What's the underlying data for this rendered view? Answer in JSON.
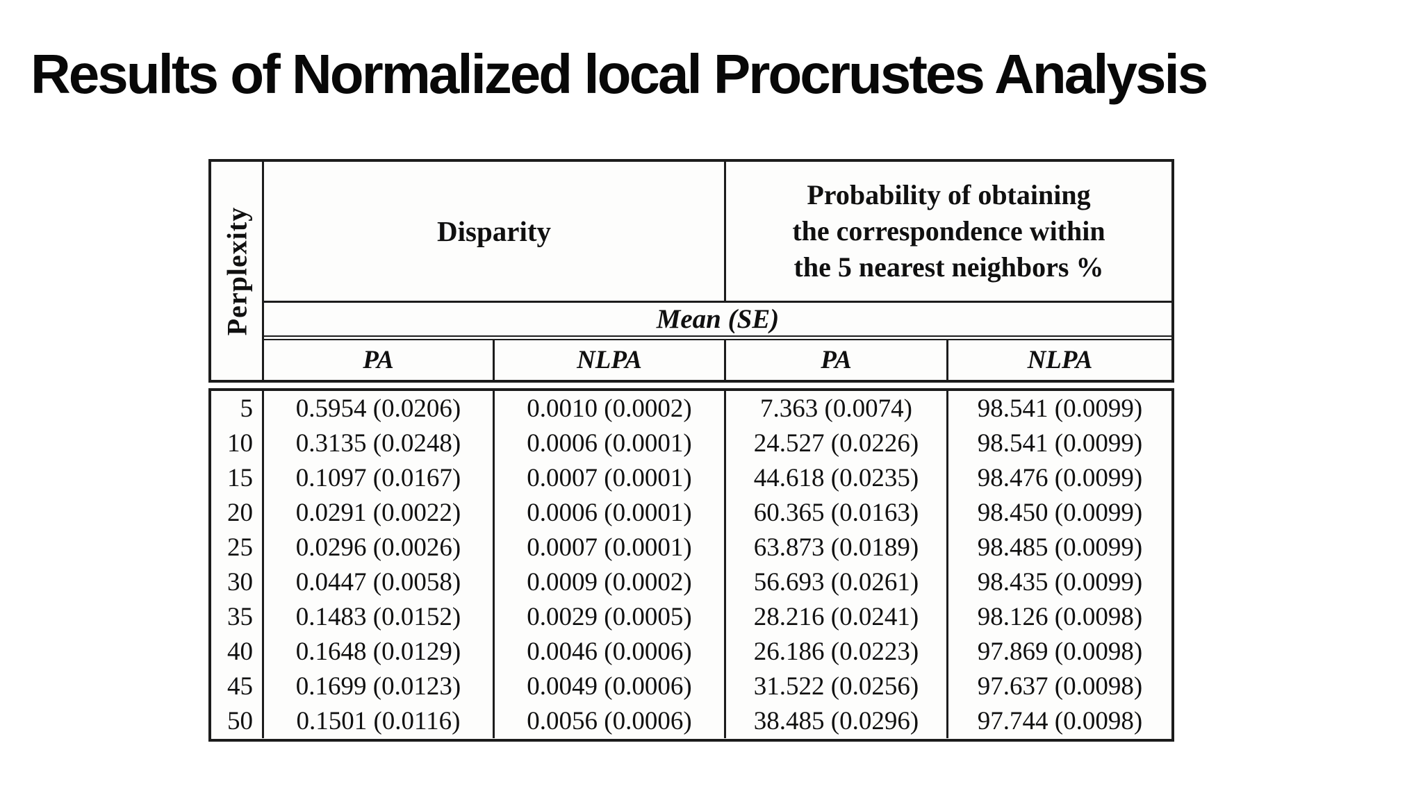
{
  "slide": {
    "title": "Results of Normalized local Procrustes Analysis"
  },
  "colors": {
    "background": "#ffffff",
    "table_line": "#1c1c1c",
    "text": "#101010"
  },
  "table": {
    "row_axis_label": "Perplexity",
    "group_headers": {
      "disparity": "Disparity",
      "probability_lines": [
        "Probability of obtaining",
        "the correspondence within",
        "the 5 nearest neighbors %"
      ]
    },
    "stat_header": "Mean (SE)",
    "method_headers": [
      "PA",
      "NLPA",
      "PA",
      "NLPA"
    ],
    "rows": [
      {
        "perplexity": "5",
        "cells": [
          "0.5954 (0.0206)",
          "0.0010 (0.0002)",
          "7.363 (0.0074)",
          "98.541 (0.0099)"
        ]
      },
      {
        "perplexity": "10",
        "cells": [
          "0.3135 (0.0248)",
          "0.0006 (0.0001)",
          "24.527 (0.0226)",
          "98.541 (0.0099)"
        ]
      },
      {
        "perplexity": "15",
        "cells": [
          "0.1097 (0.0167)",
          "0.0007 (0.0001)",
          "44.618 (0.0235)",
          "98.476 (0.0099)"
        ]
      },
      {
        "perplexity": "20",
        "cells": [
          "0.0291 (0.0022)",
          "0.0006 (0.0001)",
          "60.365 (0.0163)",
          "98.450 (0.0099)"
        ]
      },
      {
        "perplexity": "25",
        "cells": [
          "0.0296 (0.0026)",
          "0.0007 (0.0001)",
          "63.873 (0.0189)",
          "98.485 (0.0099)"
        ]
      },
      {
        "perplexity": "30",
        "cells": [
          "0.0447 (0.0058)",
          "0.0009 (0.0002)",
          "56.693 (0.0261)",
          "98.435 (0.0099)"
        ]
      },
      {
        "perplexity": "35",
        "cells": [
          "0.1483 (0.0152)",
          "0.0029 (0.0005)",
          "28.216 (0.0241)",
          "98.126 (0.0098)"
        ]
      },
      {
        "perplexity": "40",
        "cells": [
          "0.1648 (0.0129)",
          "0.0046 (0.0006)",
          "26.186 (0.0223)",
          "97.869 (0.0098)"
        ]
      },
      {
        "perplexity": "45",
        "cells": [
          "0.1699 (0.0123)",
          "0.0049 (0.0006)",
          "31.522 (0.0256)",
          "97.637 (0.0098)"
        ]
      },
      {
        "perplexity": "50",
        "cells": [
          "0.1501 (0.0116)",
          "0.0056 (0.0006)",
          "38.485 (0.0296)",
          "97.744 (0.0098)"
        ]
      }
    ]
  }
}
